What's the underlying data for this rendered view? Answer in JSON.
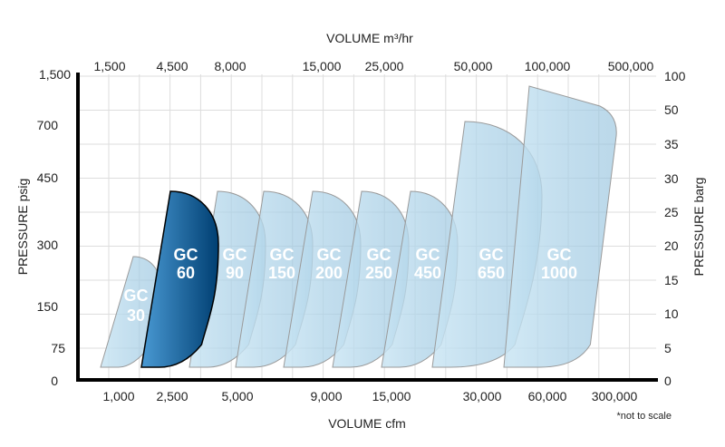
{
  "chart_data": {
    "type": "area",
    "top_axis": {
      "title": "VOLUME m³/hr",
      "ticks": [
        "1,500",
        "4,500",
        "8,000",
        "15,000",
        "25,000",
        "50,000",
        "100,000",
        "500,000"
      ]
    },
    "bottom_axis": {
      "title": "VOLUME cfm",
      "ticks": [
        "1,000",
        "2,500",
        "5,000",
        "9,000",
        "15,000",
        "30,000",
        "60,000",
        "300,000"
      ]
    },
    "left_axis": {
      "title": "PRESSURE psig",
      "ticks": [
        "1,500",
        "700",
        "450",
        "300",
        "150",
        "75",
        "0"
      ]
    },
    "right_axis": {
      "title": "PRESSURE barg",
      "ticks": [
        "100",
        "50",
        "35",
        "30",
        "25",
        "20",
        "15",
        "10",
        "5",
        "0"
      ]
    },
    "note": "*not to scale",
    "grid": true,
    "series": [
      {
        "name": "GC 30",
        "line1": "GC",
        "line2": "30",
        "max_pressure_barg": 18,
        "highlighted": false
      },
      {
        "name": "GC 60",
        "line1": "GC",
        "line2": "60",
        "max_pressure_barg": 28,
        "highlighted": true
      },
      {
        "name": "GC 90",
        "line1": "GC",
        "line2": "90",
        "max_pressure_barg": 28,
        "highlighted": false
      },
      {
        "name": "GC 150",
        "line1": "GC",
        "line2": "150",
        "max_pressure_barg": 28,
        "highlighted": false
      },
      {
        "name": "GC 200",
        "line1": "GC",
        "line2": "200",
        "max_pressure_barg": 28,
        "highlighted": false
      },
      {
        "name": "GC 250",
        "line1": "GC",
        "line2": "250",
        "max_pressure_barg": 28,
        "highlighted": false
      },
      {
        "name": "GC 450",
        "line1": "GC",
        "line2": "450",
        "max_pressure_barg": 28,
        "highlighted": false
      },
      {
        "name": "GC 650",
        "line1": "GC",
        "line2": "650",
        "max_pressure_barg": 45,
        "highlighted": false
      },
      {
        "name": "GC 1000",
        "line1": "GC",
        "line2": "1000",
        "max_pressure_barg": 85,
        "highlighted": false
      }
    ],
    "colors": {
      "highlight_dark": "#003f72",
      "highlight_light": "#4a9ad4",
      "envelope": "#a9d3ea",
      "outline": "#9a9a9a"
    }
  }
}
